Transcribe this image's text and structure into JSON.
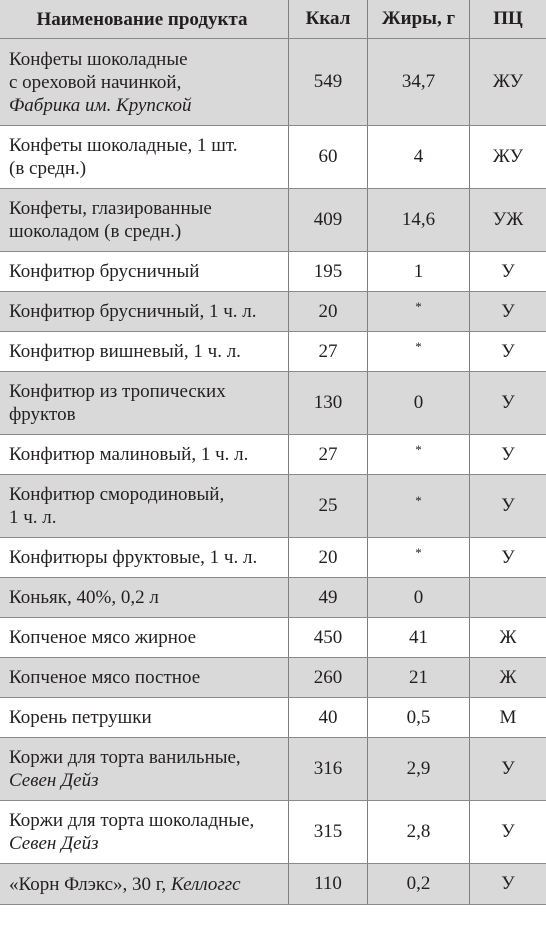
{
  "columns": {
    "name": "Наименование продукта",
    "kcal": "Ккал",
    "fat": "Жиры, г",
    "pc": "ПЦ"
  },
  "rows": [
    {
      "name_lines": [
        "Конфеты шоколадные",
        "с ореховой начинкой,"
      ],
      "name_italic": "Фабрика им. Крупской",
      "kcal": "549",
      "fat": "34,7",
      "pc": "ЖУ"
    },
    {
      "name_lines": [
        "Конфеты шоколадные, 1 шт.",
        "(в средн.)"
      ],
      "name_italic": "",
      "kcal": "60",
      "fat": "4",
      "pc": "ЖУ"
    },
    {
      "name_lines": [
        "Конфеты, глазированные",
        "шоколадом (в средн.)"
      ],
      "name_italic": "",
      "kcal": "409",
      "fat": "14,6",
      "pc": "УЖ"
    },
    {
      "name_lines": [
        "Конфитюр брусничный"
      ],
      "name_italic": "",
      "kcal": "195",
      "fat": "1",
      "pc": "У"
    },
    {
      "name_lines": [
        "Конфитюр брусничный, 1 ч. л."
      ],
      "name_italic": "",
      "kcal": "20",
      "fat": "*",
      "pc": "У"
    },
    {
      "name_lines": [
        "Конфитюр вишневый, 1 ч. л."
      ],
      "name_italic": "",
      "kcal": "27",
      "fat": "*",
      "pc": "У"
    },
    {
      "name_lines": [
        "Конфитюр из тропических",
        "фруктов"
      ],
      "name_italic": "",
      "kcal": "130",
      "fat": "0",
      "pc": "У"
    },
    {
      "name_lines": [
        "Конфитюр малиновый, 1 ч. л."
      ],
      "name_italic": "",
      "kcal": "27",
      "fat": "*",
      "pc": "У"
    },
    {
      "name_lines": [
        "Конфитюр смородиновый,",
        "1 ч. л."
      ],
      "name_italic": "",
      "kcal": "25",
      "fat": "*",
      "pc": "У"
    },
    {
      "name_lines": [
        "Конфитюры фруктовые, 1 ч. л."
      ],
      "name_italic": "",
      "kcal": "20",
      "fat": "*",
      "pc": "У"
    },
    {
      "name_lines": [
        "Коньяк, 40%, 0,2 л"
      ],
      "name_italic": "",
      "kcal": "49",
      "fat": "0",
      "pc": ""
    },
    {
      "name_lines": [
        "Копченое мясо жирное"
      ],
      "name_italic": "",
      "kcal": "450",
      "fat": "41",
      "pc": "Ж"
    },
    {
      "name_lines": [
        "Копченое мясо постное"
      ],
      "name_italic": "",
      "kcal": "260",
      "fat": "21",
      "pc": "Ж"
    },
    {
      "name_lines": [
        "Корень петрушки"
      ],
      "name_italic": "",
      "kcal": "40",
      "fat": "0,5",
      "pc": "М"
    },
    {
      "name_lines": [
        "Коржи для торта ванильные,"
      ],
      "name_italic": "Севен Дейз",
      "kcal": "316",
      "fat": "2,9",
      "pc": "У"
    },
    {
      "name_lines": [
        "Коржи для торта шоколадные,"
      ],
      "name_italic": "Севен Дейз",
      "kcal": "315",
      "fat": "2,8",
      "pc": "У"
    },
    {
      "name_lines": [
        "«Корн Флэкс», 30 г,"
      ],
      "name_italic_inline": "Келлоггс",
      "name_italic": "",
      "kcal": "110",
      "fat": "0,2",
      "pc": "У"
    }
  ]
}
